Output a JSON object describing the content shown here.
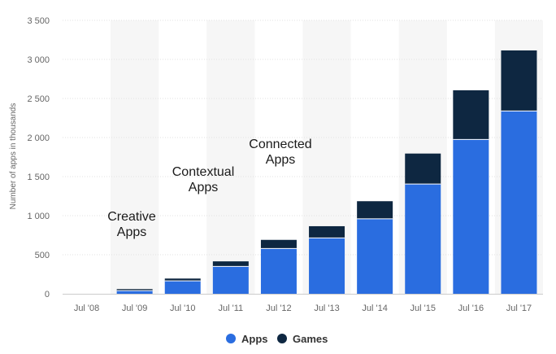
{
  "chart_data": {
    "type": "bar",
    "stacked": true,
    "title": "",
    "xlabel": "",
    "ylabel": "Number of apps in thousands",
    "ylim": [
      0,
      3500
    ],
    "yticks": [
      0,
      500,
      1000,
      1500,
      2000,
      2500,
      3000,
      3500
    ],
    "ytick_labels": [
      "0",
      "500",
      "1 000",
      "1 500",
      "2 000",
      "2 500",
      "3 000",
      "3 500"
    ],
    "categories": [
      "Jul '08",
      "Jul '09",
      "Jul '10",
      "Jul '11",
      "Jul '12",
      "Jul '13",
      "Jul '14",
      "Jul '15",
      "Jul '16",
      "Jul '17"
    ],
    "series": [
      {
        "name": "Apps",
        "color": "#2a6de0",
        "values": [
          0,
          40,
          165,
          350,
          580,
          715,
          960,
          1405,
          1975,
          2340
        ]
      },
      {
        "name": "Games",
        "color": "#0e2741",
        "values": [
          0,
          20,
          30,
          65,
          110,
          150,
          225,
          390,
          630,
          775
        ]
      }
    ],
    "grid": true,
    "legend": "bottom-center",
    "annotations": [
      {
        "id": "creative",
        "lines": [
          "Creative",
          "Apps"
        ]
      },
      {
        "id": "contextual",
        "lines": [
          "Contextual",
          "Apps"
        ]
      },
      {
        "id": "connected",
        "lines": [
          "Connected",
          "Apps"
        ]
      }
    ]
  }
}
